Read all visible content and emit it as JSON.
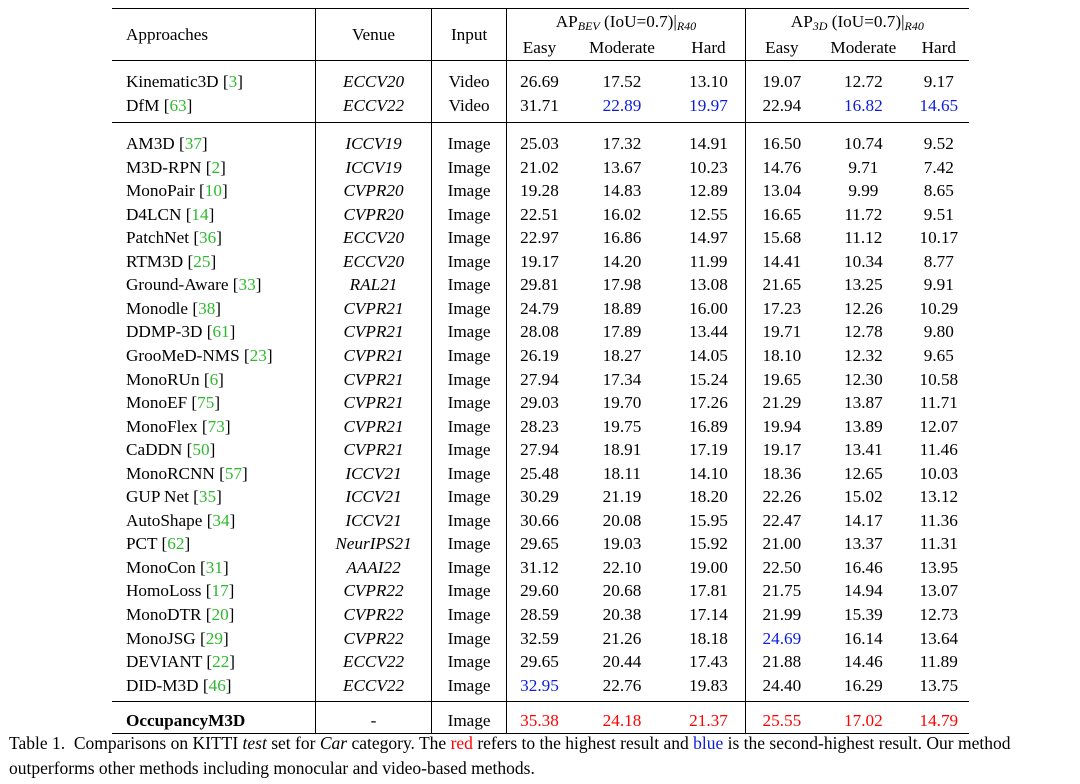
{
  "header": {
    "approaches": "Approaches",
    "venue": "Venue",
    "input": "Input",
    "group_bev": {
      "prefix": "AP",
      "sub": "BEV",
      "suffix": " (IoU=0.7)|",
      "rsub": "R40"
    },
    "group_3d": {
      "prefix": "AP",
      "sub": "3D",
      "suffix": " (IoU=0.7)|",
      "rsub": "R40"
    },
    "easy": "Easy",
    "moderate": "Moderate",
    "hard": "Hard"
  },
  "video_rows": [
    {
      "name": "Kinematic3D",
      "ref": "3",
      "venue": "ECCV20",
      "input": "Video",
      "v": [
        "26.69",
        "17.52",
        "13.10",
        "19.07",
        "12.72",
        "9.17"
      ],
      "hl": [
        "",
        "",
        "",
        "",
        "",
        ""
      ]
    },
    {
      "name": "DfM",
      "ref": "63",
      "venue": "ECCV22",
      "input": "Video",
      "v": [
        "31.71",
        "22.89",
        "19.97",
        "22.94",
        "16.82",
        "14.65"
      ],
      "hl": [
        "",
        "second",
        "second",
        "",
        "second",
        "second"
      ]
    }
  ],
  "image_rows": [
    {
      "name": "AM3D",
      "ref": "37",
      "venue": "ICCV19",
      "input": "Image",
      "v": [
        "25.03",
        "17.32",
        "14.91",
        "16.50",
        "10.74",
        "9.52"
      ],
      "hl": [
        "",
        "",
        "",
        "",
        "",
        ""
      ]
    },
    {
      "name": "M3D-RPN",
      "ref": "2",
      "venue": "ICCV19",
      "input": "Image",
      "v": [
        "21.02",
        "13.67",
        "10.23",
        "14.76",
        "9.71",
        "7.42"
      ],
      "hl": [
        "",
        "",
        "",
        "",
        "",
        ""
      ]
    },
    {
      "name": "MonoPair",
      "ref": "10",
      "venue": "CVPR20",
      "input": "Image",
      "v": [
        "19.28",
        "14.83",
        "12.89",
        "13.04",
        "9.99",
        "8.65"
      ],
      "hl": [
        "",
        "",
        "",
        "",
        "",
        ""
      ]
    },
    {
      "name": "D4LCN",
      "ref": "14",
      "venue": "CVPR20",
      "input": "Image",
      "v": [
        "22.51",
        "16.02",
        "12.55",
        "16.65",
        "11.72",
        "9.51"
      ],
      "hl": [
        "",
        "",
        "",
        "",
        "",
        ""
      ]
    },
    {
      "name": "PatchNet",
      "ref": "36",
      "venue": "ECCV20",
      "input": "Image",
      "v": [
        "22.97",
        "16.86",
        "14.97",
        "15.68",
        "11.12",
        "10.17"
      ],
      "hl": [
        "",
        "",
        "",
        "",
        "",
        ""
      ]
    },
    {
      "name": "RTM3D",
      "ref": "25",
      "venue": "ECCV20",
      "input": "Image",
      "v": [
        "19.17",
        "14.20",
        "11.99",
        "14.41",
        "10.34",
        "8.77"
      ],
      "hl": [
        "",
        "",
        "",
        "",
        "",
        ""
      ]
    },
    {
      "name": "Ground-Aware",
      "ref": "33",
      "venue": "RAL21",
      "input": "Image",
      "v": [
        "29.81",
        "17.98",
        "13.08",
        "21.65",
        "13.25",
        "9.91"
      ],
      "hl": [
        "",
        "",
        "",
        "",
        "",
        ""
      ]
    },
    {
      "name": "Monodle",
      "ref": "38",
      "venue": "CVPR21",
      "input": "Image",
      "v": [
        "24.79",
        "18.89",
        "16.00",
        "17.23",
        "12.26",
        "10.29"
      ],
      "hl": [
        "",
        "",
        "",
        "",
        "",
        ""
      ]
    },
    {
      "name": "DDMP-3D",
      "ref": "61",
      "venue": "CVPR21",
      "input": "Image",
      "v": [
        "28.08",
        "17.89",
        "13.44",
        "19.71",
        "12.78",
        "9.80"
      ],
      "hl": [
        "",
        "",
        "",
        "",
        "",
        ""
      ]
    },
    {
      "name": "GrooMeD-NMS",
      "ref": "23",
      "venue": "CVPR21",
      "input": "Image",
      "v": [
        "26.19",
        "18.27",
        "14.05",
        "18.10",
        "12.32",
        "9.65"
      ],
      "hl": [
        "",
        "",
        "",
        "",
        "",
        ""
      ]
    },
    {
      "name": "MonoRUn",
      "ref": "6",
      "venue": "CVPR21",
      "input": "Image",
      "v": [
        "27.94",
        "17.34",
        "15.24",
        "19.65",
        "12.30",
        "10.58"
      ],
      "hl": [
        "",
        "",
        "",
        "",
        "",
        ""
      ]
    },
    {
      "name": "MonoEF",
      "ref": "75",
      "venue": "CVPR21",
      "input": "Image",
      "v": [
        "29.03",
        "19.70",
        "17.26",
        "21.29",
        "13.87",
        "11.71"
      ],
      "hl": [
        "",
        "",
        "",
        "",
        "",
        ""
      ]
    },
    {
      "name": "MonoFlex",
      "ref": "73",
      "venue": "CVPR21",
      "input": "Image",
      "v": [
        "28.23",
        "19.75",
        "16.89",
        "19.94",
        "13.89",
        "12.07"
      ],
      "hl": [
        "",
        "",
        "",
        "",
        "",
        ""
      ]
    },
    {
      "name": "CaDDN",
      "ref": "50",
      "venue": "CVPR21",
      "input": "Image",
      "v": [
        "27.94",
        "18.91",
        "17.19",
        "19.17",
        "13.41",
        "11.46"
      ],
      "hl": [
        "",
        "",
        "",
        "",
        "",
        ""
      ]
    },
    {
      "name": "MonoRCNN",
      "ref": "57",
      "venue": "ICCV21",
      "input": "Image",
      "v": [
        "25.48",
        "18.11",
        "14.10",
        "18.36",
        "12.65",
        "10.03"
      ],
      "hl": [
        "",
        "",
        "",
        "",
        "",
        ""
      ]
    },
    {
      "name": "GUP Net",
      "ref": "35",
      "venue": "ICCV21",
      "input": "Image",
      "v": [
        "30.29",
        "21.19",
        "18.20",
        "22.26",
        "15.02",
        "13.12"
      ],
      "hl": [
        "",
        "",
        "",
        "",
        "",
        ""
      ]
    },
    {
      "name": "AutoShape",
      "ref": "34",
      "venue": "ICCV21",
      "input": "Image",
      "v": [
        "30.66",
        "20.08",
        "15.95",
        "22.47",
        "14.17",
        "11.36"
      ],
      "hl": [
        "",
        "",
        "",
        "",
        "",
        ""
      ]
    },
    {
      "name": "PCT",
      "ref": "62",
      "venue": "NeurIPS21",
      "input": "Image",
      "v": [
        "29.65",
        "19.03",
        "15.92",
        "21.00",
        "13.37",
        "11.31"
      ],
      "hl": [
        "",
        "",
        "",
        "",
        "",
        ""
      ]
    },
    {
      "name": "MonoCon",
      "ref": "31",
      "venue": "AAAI22",
      "input": "Image",
      "v": [
        "31.12",
        "22.10",
        "19.00",
        "22.50",
        "16.46",
        "13.95"
      ],
      "hl": [
        "",
        "",
        "",
        "",
        "",
        ""
      ]
    },
    {
      "name": "HomoLoss",
      "ref": "17",
      "venue": "CVPR22",
      "input": "Image",
      "v": [
        "29.60",
        "20.68",
        "17.81",
        "21.75",
        "14.94",
        "13.07"
      ],
      "hl": [
        "",
        "",
        "",
        "",
        "",
        ""
      ]
    },
    {
      "name": "MonoDTR",
      "ref": "20",
      "venue": "CVPR22",
      "input": "Image",
      "v": [
        "28.59",
        "20.38",
        "17.14",
        "21.99",
        "15.39",
        "12.73"
      ],
      "hl": [
        "",
        "",
        "",
        "",
        "",
        ""
      ]
    },
    {
      "name": "MonoJSG",
      "ref": "29",
      "venue": "CVPR22",
      "input": "Image",
      "v": [
        "32.59",
        "21.26",
        "18.18",
        "24.69",
        "16.14",
        "13.64"
      ],
      "hl": [
        "",
        "",
        "",
        "second",
        "",
        ""
      ]
    },
    {
      "name": "DEVIANT",
      "ref": "22",
      "venue": "ECCV22",
      "input": "Image",
      "v": [
        "29.65",
        "20.44",
        "17.43",
        "21.88",
        "14.46",
        "11.89"
      ],
      "hl": [
        "",
        "",
        "",
        "",
        "",
        ""
      ]
    },
    {
      "name": "DID-M3D",
      "ref": "46",
      "venue": "ECCV22",
      "input": "Image",
      "v": [
        "32.95",
        "22.76",
        "19.83",
        "24.40",
        "16.29",
        "13.75"
      ],
      "hl": [
        "second",
        "",
        "",
        "",
        "",
        ""
      ]
    }
  ],
  "ours": {
    "name": "OccupancyM3D",
    "venue": "-",
    "input": "Image",
    "v": [
      "35.38",
      "24.18",
      "21.37",
      "25.55",
      "17.02",
      "14.79"
    ],
    "hl": [
      "best",
      "best",
      "best",
      "best",
      "best",
      "best"
    ]
  },
  "caption": {
    "label": "Table 1.",
    "t1": "Comparisons on KITTI ",
    "test": "test",
    "t2": " set for ",
    "car": "Car",
    "t3": " category. The ",
    "red": "red",
    "t4": " refers to the highest result and ",
    "blue": "blue",
    "t5": " is the second-highest result. Our method outperforms other methods including monocular and video-based methods."
  },
  "colors": {
    "best": "#ff0000",
    "second": "#0b1ddb",
    "ref": "#2db92d"
  }
}
